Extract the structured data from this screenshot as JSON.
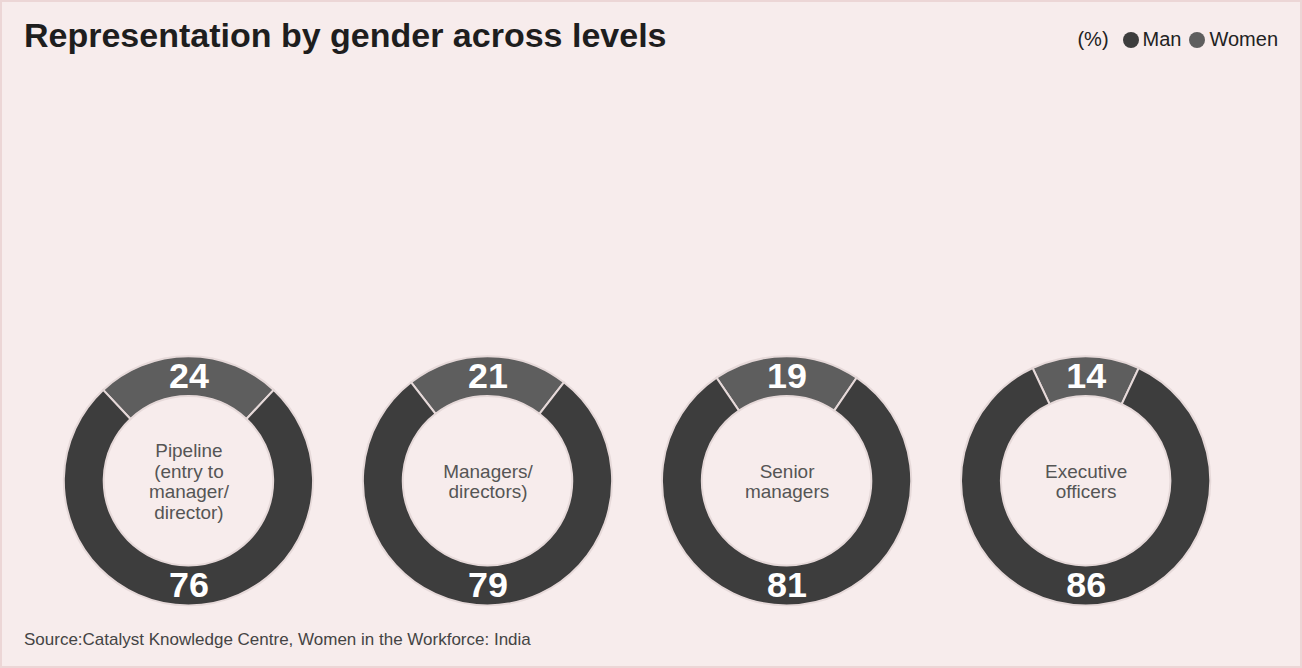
{
  "chart_data": {
    "type": "pie",
    "title": "Representation by gender across levels",
    "legend_title": "(%)",
    "caption": "Source:Catalyst Knowledge Centre, Women in the Workforce: India",
    "categories": [
      "Pipeline (entry to manager/director)",
      "Managers/directors)",
      "Senior managers",
      "Executive officers"
    ],
    "series": [
      {
        "name": "Man",
        "color": "#3d3d3d",
        "values": [
          76,
          79,
          81,
          86
        ]
      },
      {
        "name": "Women",
        "color": "#5e5e5e",
        "values": [
          24,
          21,
          19,
          14
        ]
      }
    ],
    "data_labels": true,
    "legend": "top-right"
  }
}
